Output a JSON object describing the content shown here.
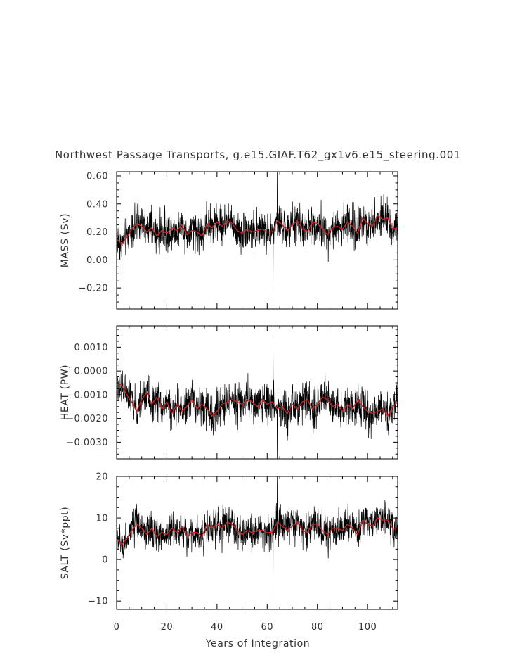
{
  "chart_data": {
    "type": "line",
    "title": "Northwest Passage Transports, g.e15.GIAF.T62_gx1v6.e15_steering.001",
    "xlabel": "Years of Integration",
    "xlim": [
      0,
      112
    ],
    "x_ticks": [
      0,
      20,
      40,
      60,
      80,
      100
    ],
    "x_tick_labels": [
      "0",
      "20",
      "40",
      "60",
      "80",
      "100"
    ],
    "series_colors": {
      "monthly": "#000000",
      "smoothed": "#d62020"
    },
    "panels": [
      {
        "ylabel": "MASS (Sv)",
        "ylim": [
          -0.35,
          0.63
        ],
        "y_ticks": [
          0.6,
          0.4,
          0.2,
          0.0,
          -0.2
        ],
        "y_tick_labels": [
          "0.60",
          "0.40",
          "0.20",
          "0.00",
          "−0.20"
        ],
        "noise_amplitude": 0.1,
        "spikes": [
          {
            "x": 62.3,
            "y": -0.35
          },
          {
            "x": 64.0,
            "y": 0.63
          }
        ],
        "smoothed": {
          "x": [
            0,
            2,
            4,
            6,
            8,
            10,
            12,
            14,
            16,
            18,
            20,
            22,
            24,
            26,
            28,
            30,
            32,
            34,
            36,
            38,
            40,
            42,
            44,
            46,
            48,
            50,
            52,
            54,
            56,
            58,
            60,
            62,
            64,
            66,
            68,
            70,
            72,
            74,
            76,
            78,
            80,
            82,
            84,
            86,
            88,
            90,
            92,
            94,
            96,
            98,
            100,
            102,
            104,
            106,
            108,
            110,
            112
          ],
          "y": [
            0.15,
            0.11,
            0.16,
            0.22,
            0.26,
            0.24,
            0.2,
            0.23,
            0.17,
            0.21,
            0.19,
            0.23,
            0.21,
            0.25,
            0.18,
            0.21,
            0.2,
            0.17,
            0.26,
            0.23,
            0.27,
            0.24,
            0.28,
            0.26,
            0.21,
            0.19,
            0.22,
            0.2,
            0.21,
            0.22,
            0.2,
            0.2,
            0.28,
            0.25,
            0.21,
            0.25,
            0.28,
            0.22,
            0.2,
            0.27,
            0.26,
            0.22,
            0.18,
            0.23,
            0.24,
            0.22,
            0.27,
            0.24,
            0.19,
            0.3,
            0.26,
            0.24,
            0.32,
            0.29,
            0.3,
            0.22,
            0.23
          ]
        }
      },
      {
        "ylabel": "HEAT (PW)",
        "ylim": [
          -0.0037,
          0.0019
        ],
        "y_ticks": [
          0.001,
          0.0,
          -0.001,
          -0.002,
          -0.003
        ],
        "y_tick_labels": [
          "0.0010",
          "0.0000",
          "−0.0010",
          "−0.0020",
          "−0.0030"
        ],
        "noise_amplitude": 0.0006,
        "spikes": [
          {
            "x": 62.3,
            "y": 0.0019
          },
          {
            "x": 64.0,
            "y": -0.0037
          }
        ],
        "smoothed": {
          "x": [
            0,
            2,
            4,
            6,
            8,
            10,
            12,
            14,
            16,
            18,
            20,
            22,
            24,
            26,
            28,
            30,
            32,
            34,
            36,
            38,
            40,
            42,
            44,
            46,
            48,
            50,
            52,
            54,
            56,
            58,
            60,
            62,
            64,
            66,
            68,
            70,
            72,
            74,
            76,
            78,
            80,
            82,
            84,
            86,
            88,
            90,
            92,
            94,
            96,
            98,
            100,
            102,
            104,
            106,
            108,
            110,
            112
          ],
          "y": [
            -0.0005,
            -0.0006,
            -0.001,
            -0.0013,
            -0.0017,
            -0.0012,
            -0.0009,
            -0.0014,
            -0.0011,
            -0.0016,
            -0.0013,
            -0.0018,
            -0.0014,
            -0.0017,
            -0.0015,
            -0.0012,
            -0.0016,
            -0.0014,
            -0.0016,
            -0.0019,
            -0.0017,
            -0.0014,
            -0.0013,
            -0.0012,
            -0.0013,
            -0.0014,
            -0.0012,
            -0.0013,
            -0.0015,
            -0.0012,
            -0.0014,
            -0.0013,
            -0.0016,
            -0.0015,
            -0.0018,
            -0.0014,
            -0.0016,
            -0.0013,
            -0.0012,
            -0.0016,
            -0.0014,
            -0.0011,
            -0.0012,
            -0.0015,
            -0.0014,
            -0.0017,
            -0.0014,
            -0.0016,
            -0.0012,
            -0.0015,
            -0.0017,
            -0.0018,
            -0.0017,
            -0.0016,
            -0.0019,
            -0.0015,
            -0.0013
          ]
        }
      },
      {
        "ylabel": "SALT (Sv*ppt)",
        "ylim": [
          -12,
          20
        ],
        "y_ticks": [
          20,
          10,
          0,
          -10
        ],
        "y_tick_labels": [
          "20",
          "10",
          "0",
          "−10"
        ],
        "noise_amplitude": 3.2,
        "spikes": [
          {
            "x": 62.3,
            "y": -12
          },
          {
            "x": 64.0,
            "y": 20
          }
        ],
        "smoothed": {
          "x": [
            0,
            2,
            4,
            6,
            8,
            10,
            12,
            14,
            16,
            18,
            20,
            22,
            24,
            26,
            28,
            30,
            32,
            34,
            36,
            38,
            40,
            42,
            44,
            46,
            48,
            50,
            52,
            54,
            56,
            58,
            60,
            62,
            64,
            66,
            68,
            70,
            72,
            74,
            76,
            78,
            80,
            82,
            84,
            86,
            88,
            90,
            92,
            94,
            96,
            98,
            100,
            102,
            104,
            106,
            108,
            110,
            112
          ],
          "y": [
            5,
            3.5,
            5,
            7,
            8.5,
            7.5,
            6,
            7.5,
            5.5,
            6.5,
            6,
            7.5,
            6.5,
            8,
            5.5,
            6.5,
            6.5,
            5.5,
            8.5,
            7.5,
            8.5,
            7.5,
            9,
            8.5,
            7,
            6,
            7,
            6.5,
            7,
            7,
            6.5,
            6.5,
            9,
            8,
            7,
            8,
            9,
            7,
            6.5,
            8.5,
            8.5,
            7,
            6,
            7.5,
            7.5,
            7,
            8.5,
            7.5,
            6,
            9.5,
            8.5,
            8,
            10,
            9.5,
            9.5,
            7.5,
            7.5
          ]
        }
      }
    ]
  }
}
